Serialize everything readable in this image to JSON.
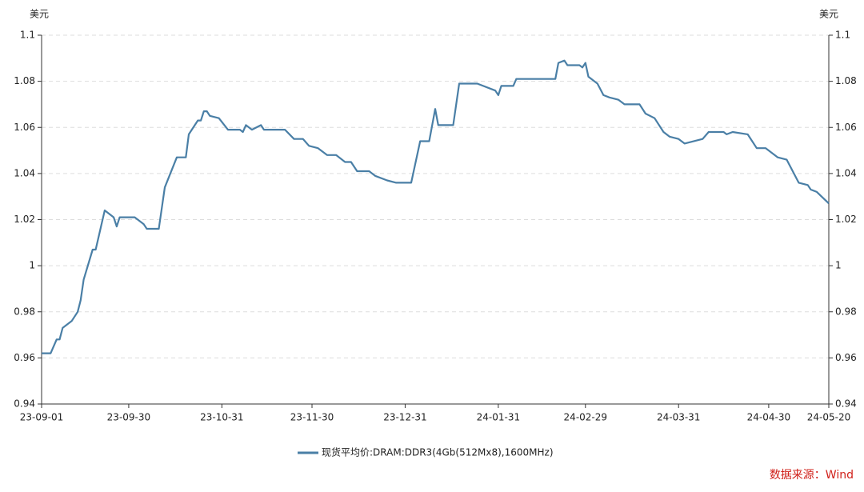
{
  "chart_data": {
    "type": "line",
    "y_label": "美元",
    "source": "数据来源：Wind",
    "x": [
      "23-09-01",
      "23-09-04",
      "23-09-06",
      "23-09-07",
      "23-09-08",
      "23-09-11",
      "23-09-13",
      "23-09-14",
      "23-09-15",
      "23-09-18",
      "23-09-19",
      "23-09-22",
      "23-09-25",
      "23-09-26",
      "23-09-27",
      "23-10-02",
      "23-10-05",
      "23-10-06",
      "23-10-10",
      "23-10-12",
      "23-10-16",
      "23-10-19",
      "23-10-20",
      "23-10-23",
      "23-10-24",
      "23-10-25",
      "23-10-26",
      "23-10-27",
      "23-10-30",
      "23-11-02",
      "23-11-06",
      "23-11-07",
      "23-11-08",
      "23-11-10",
      "23-11-13",
      "23-11-14",
      "23-11-21",
      "23-11-24",
      "23-11-27",
      "23-11-29",
      "23-12-02",
      "23-12-05",
      "23-12-08",
      "23-12-11",
      "23-12-13",
      "23-12-15",
      "23-12-19",
      "23-12-21",
      "23-12-25",
      "23-12-28",
      "24-01-02",
      "24-01-05",
      "24-01-08",
      "24-01-10",
      "24-01-11",
      "24-01-16",
      "24-01-18",
      "24-01-24",
      "24-01-30",
      "24-01-31",
      "24-02-01",
      "24-02-05",
      "24-02-06",
      "24-02-19",
      "24-02-20",
      "24-02-22",
      "24-02-23",
      "24-02-27",
      "24-02-28",
      "24-02-29",
      "24-03-01",
      "24-03-04",
      "24-03-06",
      "24-03-08",
      "24-03-11",
      "24-03-13",
      "24-03-18",
      "24-03-20",
      "24-03-23",
      "24-03-26",
      "24-03-28",
      "24-03-31",
      "24-04-02",
      "24-04-08",
      "24-04-10",
      "24-04-15",
      "24-04-16",
      "24-04-18",
      "24-04-23",
      "24-04-26",
      "24-04-29",
      "24-05-03",
      "24-05-06",
      "24-05-08",
      "24-05-10",
      "24-05-13",
      "24-05-14",
      "24-05-16",
      "24-05-20"
    ],
    "series": [
      {
        "name": "现货平均价:DRAM:DDR3(4Gb(512Mx8),1600MHz)",
        "color": "#4a7fa6",
        "values": [
          0.962,
          0.962,
          0.968,
          0.968,
          0.973,
          0.976,
          0.98,
          0.985,
          0.994,
          1.007,
          1.007,
          1.024,
          1.021,
          1.017,
          1.021,
          1.021,
          1.018,
          1.016,
          1.016,
          1.034,
          1.047,
          1.047,
          1.057,
          1.063,
          1.063,
          1.067,
          1.067,
          1.065,
          1.064,
          1.059,
          1.059,
          1.058,
          1.061,
          1.059,
          1.061,
          1.059,
          1.059,
          1.055,
          1.055,
          1.052,
          1.051,
          1.048,
          1.048,
          1.045,
          1.045,
          1.041,
          1.041,
          1.039,
          1.037,
          1.036,
          1.036,
          1.054,
          1.054,
          1.068,
          1.061,
          1.061,
          1.079,
          1.079,
          1.076,
          1.074,
          1.078,
          1.078,
          1.081,
          1.081,
          1.088,
          1.089,
          1.087,
          1.087,
          1.086,
          1.088,
          1.082,
          1.079,
          1.074,
          1.073,
          1.072,
          1.07,
          1.07,
          1.066,
          1.064,
          1.058,
          1.056,
          1.055,
          1.053,
          1.055,
          1.058,
          1.058,
          1.057,
          1.058,
          1.057,
          1.051,
          1.051,
          1.047,
          1.046,
          1.041,
          1.036,
          1.035,
          1.033,
          1.032,
          1.027
        ]
      }
    ],
    "xlim": [
      "23-09-01",
      "24-05-20"
    ],
    "xticks": [
      "23-09-01",
      "23-09-30",
      "23-10-31",
      "23-11-30",
      "23-12-31",
      "24-01-31",
      "24-02-29",
      "24-03-31",
      "24-04-30",
      "24-05-20"
    ],
    "ylim": [
      0.94,
      1.1
    ],
    "yticks": [
      0.94,
      0.96,
      0.98,
      1,
      1.02,
      1.04,
      1.06,
      1.08,
      1.1
    ],
    "grid": true,
    "legend": "bottom"
  }
}
